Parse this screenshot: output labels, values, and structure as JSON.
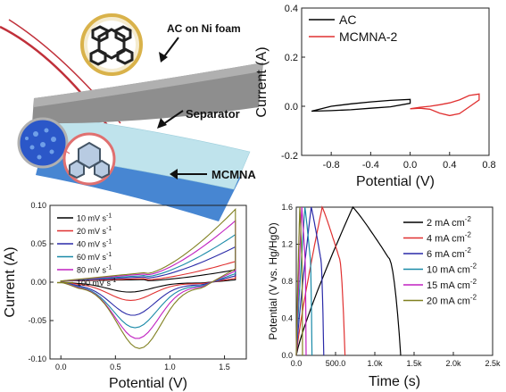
{
  "schematic": {
    "labels": {
      "ac": "AC on Ni foam",
      "separator": "Separator",
      "mcmna": "MCMNA"
    },
    "colors": {
      "ac_sheet": "#8e8e8e",
      "separator": "#bfe3ec",
      "mcmna_sheet": "#3d7fd0",
      "ring": "#d9b24a",
      "wire": "#c0303a"
    }
  },
  "chart_data": [
    {
      "id": "cv_compare",
      "type": "line",
      "xlabel": "Potential (V)",
      "ylabel": "Current (A)",
      "xlim": [
        -1.1,
        0.8
      ],
      "ylim": [
        -0.2,
        0.4
      ],
      "xticks": [
        "-0.8",
        "-0.4",
        "0.0",
        "0.4",
        "0.8"
      ],
      "xtick_values": [
        -0.8,
        -0.4,
        0.0,
        0.4,
        0.8
      ],
      "yticks": [
        "-0.2",
        "0.0",
        "0.2",
        "0.4"
      ],
      "ytick_values": [
        -0.2,
        0.0,
        0.2,
        0.4
      ],
      "legend_position": "top-left",
      "series": [
        {
          "name": "AC",
          "color": "#000000",
          "x": [
            -1.0,
            -0.8,
            -0.6,
            -0.4,
            -0.2,
            0.0,
            0.0,
            -0.2,
            -0.4,
            -0.6,
            -0.8,
            -1.0
          ],
          "y": [
            -0.02,
            0.0,
            0.01,
            0.018,
            0.024,
            0.028,
            0.012,
            -0.002,
            -0.008,
            -0.014,
            -0.018,
            -0.02
          ]
        },
        {
          "name": "MCMNA-2",
          "color": "#e03030",
          "x": [
            0.0,
            0.1,
            0.2,
            0.3,
            0.4,
            0.5,
            0.6,
            0.7,
            0.7,
            0.6,
            0.5,
            0.4,
            0.3,
            0.2,
            0.1,
            0.0
          ],
          "y": [
            -0.01,
            -0.004,
            0.0,
            0.006,
            0.014,
            0.026,
            0.044,
            0.05,
            0.026,
            -0.002,
            -0.03,
            -0.038,
            -0.028,
            -0.012,
            -0.008,
            -0.01
          ]
        }
      ]
    },
    {
      "id": "cv_rates",
      "type": "line",
      "xlabel": "Potential (V)",
      "ylabel": "Current (A)",
      "xlim": [
        -0.1,
        1.7
      ],
      "ylim": [
        -0.1,
        0.1
      ],
      "xticks": [
        "0.0",
        "0.5",
        "1.0",
        "1.5"
      ],
      "xtick_values": [
        0.0,
        0.5,
        1.0,
        1.5
      ],
      "yticks": [
        "-0.10",
        "-0.05",
        "0.00",
        "0.05",
        "0.10"
      ],
      "ytick_values": [
        -0.1,
        -0.05,
        0.0,
        0.05,
        0.1
      ],
      "legend_position": "top-left",
      "series": [
        {
          "name": "10  mV s",
          "sup": "-1",
          "color": "#000000",
          "rate": 10,
          "ymax": 0.016,
          "ymin": -0.012
        },
        {
          "name": "20  mV s",
          "sup": "-1",
          "color": "#e03030",
          "rate": 20,
          "ymax": 0.027,
          "ymin": -0.022
        },
        {
          "name": "40  mV s",
          "sup": "-1",
          "color": "#2a2aa8",
          "rate": 40,
          "ymax": 0.046,
          "ymin": -0.04
        },
        {
          "name": "60  mV s",
          "sup": "-1",
          "color": "#1a8aa8",
          "rate": 60,
          "ymax": 0.062,
          "ymin": -0.055
        },
        {
          "name": "80  mV s",
          "sup": "-1",
          "color": "#c020c0",
          "rate": 80,
          "ymax": 0.08,
          "ymin": -0.068
        },
        {
          "name": "100  mV s",
          "sup": "-1",
          "color": "#808020",
          "rate": 100,
          "ymax": 0.095,
          "ymin": -0.08
        }
      ]
    },
    {
      "id": "gcd",
      "type": "line",
      "xlabel": "Time (s)",
      "ylabel": "Potential (V vs. Hg/HgO)",
      "xlim": [
        0,
        2500
      ],
      "ylim": [
        0,
        1.6
      ],
      "xticks": [
        "0.0",
        "500.0",
        "1.0k",
        "1.5k",
        "2.0k",
        "2.5k"
      ],
      "xtick_values": [
        0,
        500,
        1000,
        1500,
        2000,
        2500
      ],
      "yticks": [
        "0.0",
        "0.4",
        "0.8",
        "1.2",
        "1.6"
      ],
      "ytick_values": [
        0.0,
        0.4,
        0.8,
        1.2,
        1.6
      ],
      "legend_position": "right",
      "series": [
        {
          "name": "2  mA cm",
          "sup": "-2",
          "color": "#000000",
          "charge_end": 720,
          "discharge_end": 1330
        },
        {
          "name": "4  mA cm",
          "sup": "-2",
          "color": "#e03030",
          "charge_end": 330,
          "discharge_end": 620
        },
        {
          "name": "6  mA cm",
          "sup": "-2",
          "color": "#2a2aa8",
          "charge_end": 190,
          "discharge_end": 350
        },
        {
          "name": "10  mA cm",
          "sup": "-2",
          "color": "#1a8aa8",
          "charge_end": 110,
          "discharge_end": 200
        },
        {
          "name": "15  mA cm",
          "sup": "-2",
          "color": "#c020c0",
          "charge_end": 70,
          "discharge_end": 125
        },
        {
          "name": "20  mA cm",
          "sup": "-2",
          "color": "#808020",
          "charge_end": 45,
          "discharge_end": 80
        }
      ]
    }
  ]
}
